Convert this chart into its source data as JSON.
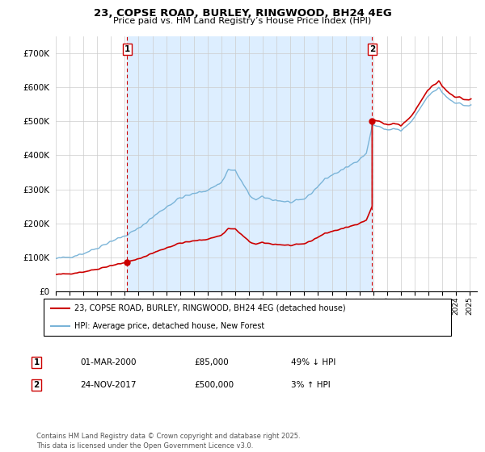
{
  "title": "23, COPSE ROAD, BURLEY, RINGWOOD, BH24 4EG",
  "subtitle": "Price paid vs. HM Land Registry’s House Price Index (HPI)",
  "background_color": "#ffffff",
  "plot_bg_color": "#ffffff",
  "shading_color": "#ddeeff",
  "grid_color": "#cccccc",
  "ylim": [
    0,
    750000
  ],
  "yticks": [
    0,
    100000,
    200000,
    300000,
    400000,
    500000,
    600000,
    700000
  ],
  "ytick_labels": [
    "£0",
    "£100K",
    "£200K",
    "£300K",
    "£400K",
    "£500K",
    "£600K",
    "£700K"
  ],
  "xlim_start": 1995.0,
  "xlim_end": 2025.5,
  "sale1_x": 2000.17,
  "sale1_y": 85000,
  "sale2_x": 2017.92,
  "sale2_y": 500000,
  "sale1_label": "1",
  "sale2_label": "2",
  "legend_line1": "23, COPSE ROAD, BURLEY, RINGWOOD, BH24 4EG (detached house)",
  "legend_line2": "HPI: Average price, detached house, New Forest",
  "table_row1": [
    "1",
    "01-MAR-2000",
    "£85,000",
    "49% ↓ HPI"
  ],
  "table_row2": [
    "2",
    "24-NOV-2017",
    "£500,000",
    "3% ↑ HPI"
  ],
  "footer": "Contains HM Land Registry data © Crown copyright and database right 2025.\nThis data is licensed under the Open Government Licence v3.0.",
  "hpi_color": "#7ab4d8",
  "price_color": "#cc0000",
  "vline_color": "#cc0000"
}
